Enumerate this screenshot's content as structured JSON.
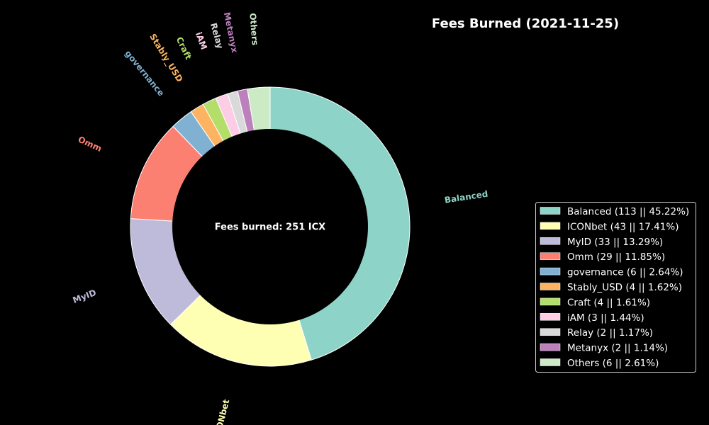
{
  "chart_data": {
    "type": "pie",
    "title": "Fees Burned (2021-11-25)",
    "center_text": "Fees burned: 251 ICX",
    "donut": true,
    "legend_position": "right",
    "background": "#000000",
    "slices": [
      {
        "label": "Balanced",
        "value": 113,
        "percent": 45.22,
        "legend": "Balanced (113 || 45.22%)",
        "color": "#8dd3c7"
      },
      {
        "label": "ICONbet",
        "value": 43,
        "percent": 17.41,
        "legend": "ICONbet (43 || 17.41%)",
        "color": "#ffffb3"
      },
      {
        "label": "MyID",
        "value": 33,
        "percent": 13.29,
        "legend": "MyID (33 || 13.29%)",
        "color": "#bebada"
      },
      {
        "label": "Omm",
        "value": 29,
        "percent": 11.85,
        "legend": "Omm (29 || 11.85%)",
        "color": "#fb8072"
      },
      {
        "label": "governance",
        "value": 6,
        "percent": 2.64,
        "legend": "governance (6 || 2.64%)",
        "color": "#80b1d3"
      },
      {
        "label": "Stably_USD",
        "value": 4,
        "percent": 1.62,
        "legend": "Stably_USD (4 || 1.62%)",
        "color": "#fdb462"
      },
      {
        "label": "Craft",
        "value": 4,
        "percent": 1.61,
        "legend": "Craft (4 || 1.61%)",
        "color": "#b3de69"
      },
      {
        "label": "iAM",
        "value": 3,
        "percent": 1.44,
        "legend": "iAM  (3 || 1.44%)",
        "color": "#fccde5"
      },
      {
        "label": "Relay",
        "value": 2,
        "percent": 1.17,
        "legend": "Relay (2 || 1.17%)",
        "color": "#d9d9d9"
      },
      {
        "label": "Metanyx",
        "value": 2,
        "percent": 1.14,
        "legend": "Metanyx (2 || 1.14%)",
        "color": "#bc80bd"
      },
      {
        "label": "Others",
        "value": 6,
        "percent": 2.61,
        "legend": "Others (6 || 2.61%)",
        "color": "#ccebc5"
      }
    ]
  }
}
